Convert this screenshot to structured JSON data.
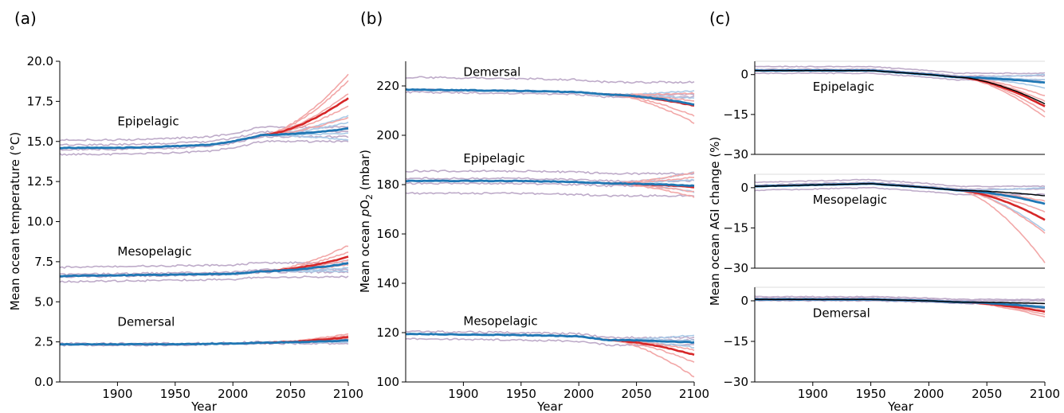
{
  "figure": {
    "panels": [
      {
        "letter": "(a)",
        "xlabel": "Year",
        "ylabel": "Mean ocean temperature (°C)"
      },
      {
        "letter": "(b)",
        "xlabel": "Year",
        "ylabel_pre": "Mean ocean ",
        "ylabel_italic": "p",
        "ylabel_mid": "O",
        "ylabel_sub": "2",
        "ylabel_post": " (mbar)"
      },
      {
        "letter": "(c)",
        "xlabel": "Year",
        "ylabel": "Mean ocean AGI change (%)"
      }
    ]
  },
  "colors": {
    "high_emission": "#d62728",
    "high_emission_member": "#f2a7a7",
    "low_emission": "#1f77b4",
    "low_emission_member": "#a9c9e6",
    "historical_member": "#b39cbf",
    "multi_model_mean": "#000000"
  },
  "chart_data": [
    {
      "type": "line",
      "panel": "a",
      "xlabel": "Year",
      "ylabel": "Mean ocean temperature (°C)",
      "xlim": [
        1850,
        2100
      ],
      "ylim": [
        0,
        20
      ],
      "xticks": [
        1900,
        1950,
        2000,
        2050,
        2100
      ],
      "xtick_labels": [
        "1900",
        "1950",
        "2000",
        "2050",
        "2100"
      ],
      "yticks": [
        0,
        2.5,
        5,
        7.5,
        10,
        12.5,
        15,
        17.5,
        20
      ],
      "ytick_labels": [
        "0.0",
        "2.5",
        "5.0",
        "7.5",
        "10.0",
        "12.5",
        "15.0",
        "17.5",
        "20.0"
      ],
      "groups": [
        {
          "label": "Epipelagic",
          "label_x": 1900,
          "label_y": 16.0,
          "hist": [
            [
              1850,
              14.6
            ],
            [
              1900,
              14.6
            ],
            [
              1950,
              14.7
            ],
            [
              1980,
              14.8
            ],
            [
              2000,
              15.0
            ],
            [
              2025,
              15.4
            ]
          ],
          "high_end": 17.7,
          "low_end": 15.8,
          "members_hist_offsets": [
            -0.4,
            -0.1,
            0.2,
            0.5
          ],
          "members_high_ends": [
            16.5,
            17.2,
            18.0,
            18.8,
            19.2
          ],
          "members_low_ends": [
            15.1,
            15.5,
            16.2,
            16.6
          ]
        },
        {
          "label": "Mesopelagic",
          "label_x": 1900,
          "label_y": 7.9,
          "hist": [
            [
              1850,
              6.6
            ],
            [
              1900,
              6.65
            ],
            [
              1950,
              6.7
            ],
            [
              2000,
              6.75
            ],
            [
              2025,
              6.9
            ]
          ],
          "high_end": 7.8,
          "low_end": 7.4,
          "members_hist_offsets": [
            -0.35,
            -0.05,
            0.1,
            0.55
          ],
          "members_high_ends": [
            7.3,
            7.6,
            8.1,
            8.5
          ],
          "members_low_ends": [
            6.9,
            7.1,
            7.6
          ]
        },
        {
          "label": "Demersal",
          "label_x": 1900,
          "label_y": 3.5,
          "hist": [
            [
              1850,
              2.35
            ],
            [
              1950,
              2.35
            ],
            [
              2000,
              2.4
            ],
            [
              2025,
              2.45
            ]
          ],
          "high_end": 2.8,
          "low_end": 2.6,
          "members_hist_offsets": [
            -0.05,
            0.05
          ],
          "members_high_ends": [
            2.7,
            2.9,
            3.0
          ],
          "members_low_ends": [
            2.5,
            2.7
          ]
        }
      ]
    },
    {
      "type": "line",
      "panel": "b",
      "xlabel": "Year",
      "ylabel": "Mean ocean pO2 (mbar)",
      "xlim": [
        1850,
        2100
      ],
      "ylim": [
        100,
        230
      ],
      "xticks": [
        1900,
        1950,
        2000,
        2050,
        2100
      ],
      "xtick_labels": [
        "1900",
        "1950",
        "2000",
        "2050",
        "2100"
      ],
      "yticks": [
        100,
        120,
        140,
        160,
        180,
        200,
        220
      ],
      "ytick_labels": [
        "100",
        "120",
        "140",
        "160",
        "180",
        "200",
        "220"
      ],
      "groups": [
        {
          "label": "Demersal",
          "label_x": 1900,
          "label_y": 224,
          "hist": [
            [
              1850,
              218.5
            ],
            [
              1950,
              218.0
            ],
            [
              2000,
              217.5
            ],
            [
              2025,
              216.5
            ]
          ],
          "high_end": 212,
          "low_end": 212.5,
          "members_hist_offsets": [
            -1.0,
            0.0,
            5.0
          ],
          "members_high_ends": [
            205,
            208,
            214,
            217
          ],
          "members_low_ends": [
            212,
            215,
            218
          ]
        },
        {
          "label": "Epipelagic",
          "label_x": 1900,
          "label_y": 189,
          "hist": [
            [
              1850,
              181.5
            ],
            [
              1950,
              181.5
            ],
            [
              2000,
              181.0
            ],
            [
              2025,
              180.5
            ]
          ],
          "high_end": 179,
          "low_end": 179.5,
          "members_hist_offsets": [
            -5.0,
            -1.0,
            1.0,
            4.0
          ],
          "members_high_ends": [
            175,
            177,
            183,
            185
          ],
          "members_low_ends": [
            177,
            182,
            185
          ]
        },
        {
          "label": "Mesopelagic",
          "label_x": 1900,
          "label_y": 123,
          "hist": [
            [
              1850,
              119.5
            ],
            [
              1950,
              119.0
            ],
            [
              2000,
              118.5
            ],
            [
              2025,
              117.0
            ]
          ],
          "high_end": 111,
          "low_end": 116,
          "members_hist_offsets": [
            -2.0,
            0.0,
            1.0
          ],
          "members_high_ends": [
            102,
            108,
            113,
            116
          ],
          "members_low_ends": [
            114,
            117,
            119
          ]
        }
      ]
    },
    {
      "type": "line",
      "panel": "c",
      "xlabel": "Year",
      "ylabel": "Mean ocean AGI change (%)",
      "xlim": [
        1850,
        2100
      ],
      "ylim": [
        -30,
        5
      ],
      "xticks": [
        1900,
        1950,
        2000,
        2050,
        2100
      ],
      "xtick_labels": [
        "1900",
        "1950",
        "2000",
        "2050",
        "2100"
      ],
      "yticks": [
        0,
        -15,
        -30
      ],
      "ytick_labels": [
        "0",
        "−15",
        "−30"
      ],
      "subplots": [
        {
          "label": "Epipelagic",
          "label_x": 1900,
          "label_y": -6,
          "hist": [
            [
              1850,
              1.5
            ],
            [
              1950,
              1.5
            ],
            [
              2000,
              0.0
            ],
            [
              2025,
              -1.0
            ]
          ],
          "high_end": -12,
          "low_end": -3,
          "mean_end": -11,
          "members_hist_offsets": [
            -1.0,
            0.5,
            1.5
          ],
          "members_high_ends": [
            -16,
            -14,
            -10,
            -8
          ],
          "members_low_ends": [
            -5,
            -2,
            0
          ]
        },
        {
          "label": "Mesopelagic",
          "label_x": 1900,
          "label_y": -6,
          "hist": [
            [
              1850,
              0.5
            ],
            [
              1950,
              1.5
            ],
            [
              2000,
              0.0
            ],
            [
              2025,
              -1.0
            ]
          ],
          "high_end": -12,
          "low_end": -6,
          "mean_end": -3,
          "members_hist_offsets": [
            -1.5,
            0.5,
            1.5
          ],
          "members_high_ends": [
            -28,
            -17,
            -9,
            -5
          ],
          "members_low_ends": [
            -16,
            -3,
            0
          ]
        },
        {
          "label": "Demersal",
          "label_x": 1900,
          "label_y": -6,
          "hist": [
            [
              1850,
              0.5
            ],
            [
              1950,
              0.5
            ],
            [
              2000,
              0.0
            ],
            [
              2025,
              -0.5
            ]
          ],
          "high_end": -4,
          "low_end": -2.5,
          "mean_end": -1,
          "members_hist_offsets": [
            -0.5,
            0.5,
            1.0
          ],
          "members_high_ends": [
            -6,
            -5,
            -3
          ],
          "members_low_ends": [
            -3,
            -2,
            -1
          ]
        }
      ]
    }
  ]
}
